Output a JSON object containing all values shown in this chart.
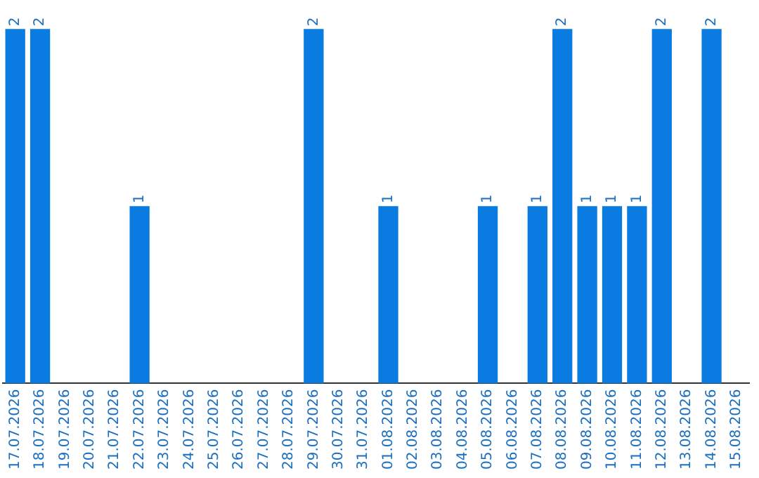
{
  "chart_data": {
    "type": "bar",
    "categories": [
      "17.07.2026",
      "18.07.2026",
      "19.07.2026",
      "20.07.2026",
      "21.07.2026",
      "22.07.2026",
      "23.07.2026",
      "24.07.2026",
      "25.07.2026",
      "26.07.2026",
      "27.07.2026",
      "28.07.2026",
      "29.07.2026",
      "30.07.2026",
      "31.07.2026",
      "01.08.2026",
      "02.08.2026",
      "03.08.2026",
      "04.08.2026",
      "05.08.2026",
      "06.08.2026",
      "07.08.2026",
      "08.08.2026",
      "09.08.2026",
      "10.08.2026",
      "11.08.2026",
      "12.08.2026",
      "13.08.2026",
      "14.08.2026",
      "15.08.2026"
    ],
    "values": [
      2,
      2,
      0,
      0,
      0,
      1,
      0,
      0,
      0,
      0,
      0,
      0,
      2,
      0,
      0,
      1,
      0,
      0,
      0,
      1,
      0,
      1,
      2,
      1,
      1,
      1,
      2,
      0,
      2,
      0
    ],
    "value_labels": [
      "2",
      "2",
      null,
      null,
      null,
      "1",
      null,
      null,
      null,
      null,
      null,
      null,
      "2",
      null,
      null,
      "1",
      null,
      null,
      null,
      "1",
      null,
      "1",
      "2",
      "1",
      "1",
      "1",
      "2",
      null,
      "2",
      null
    ],
    "color": "#0a7be0",
    "tick_labels": "x",
    "grid": false,
    "legend": false
  }
}
